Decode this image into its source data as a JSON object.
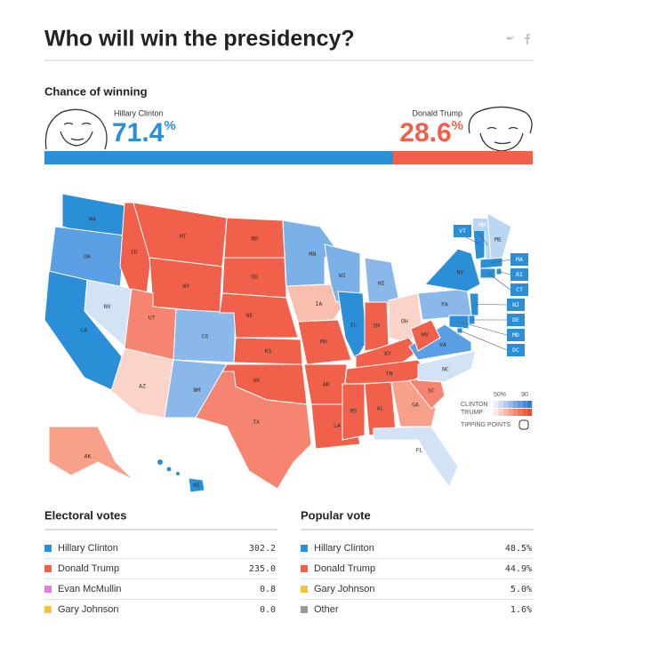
{
  "header": {
    "title": "Who will win the presidency?"
  },
  "chance": {
    "label": "Chance of winning",
    "candidates": [
      {
        "name": "Hillary Clinton",
        "value": 71.4,
        "unit": "%",
        "color": "#2b8fd8"
      },
      {
        "name": "Donald Trump",
        "value": 28.6,
        "unit": "%",
        "color": "#f0604a"
      }
    ]
  },
  "map": {
    "states": [
      {
        "abbr": "WA",
        "color": "#2b8fd8"
      },
      {
        "abbr": "OR",
        "color": "#5a9ee4"
      },
      {
        "abbr": "CA",
        "color": "#2b8fd8"
      },
      {
        "abbr": "NV",
        "color": "#d3e3f6"
      },
      {
        "abbr": "ID",
        "color": "#f0604a"
      },
      {
        "abbr": "MT",
        "color": "#f0604a"
      },
      {
        "abbr": "WY",
        "color": "#f0604a"
      },
      {
        "abbr": "UT",
        "color": "#f58570"
      },
      {
        "abbr": "CO",
        "color": "#8ab8ea"
      },
      {
        "abbr": "AZ",
        "color": "#fbd3c8"
      },
      {
        "abbr": "NM",
        "color": "#8ab8ea"
      },
      {
        "abbr": "ND",
        "color": "#f0604a"
      },
      {
        "abbr": "SD",
        "color": "#f0604a"
      },
      {
        "abbr": "NE",
        "color": "#f0604a"
      },
      {
        "abbr": "KS",
        "color": "#f0604a"
      },
      {
        "abbr": "OK",
        "color": "#f0604a"
      },
      {
        "abbr": "TX",
        "color": "#f58570"
      },
      {
        "abbr": "MN",
        "color": "#7cb1e8"
      },
      {
        "abbr": "IA",
        "color": "#f9bfae"
      },
      {
        "abbr": "MO",
        "color": "#f0604a"
      },
      {
        "abbr": "AR",
        "color": "#f0604a"
      },
      {
        "abbr": "LA",
        "color": "#f0604a"
      },
      {
        "abbr": "WI",
        "color": "#7cb1e8"
      },
      {
        "abbr": "IL",
        "color": "#2b8fd8"
      },
      {
        "abbr": "MI",
        "color": "#8ab8ea"
      },
      {
        "abbr": "IN",
        "color": "#f0604a"
      },
      {
        "abbr": "OH",
        "color": "#fbd3c8"
      },
      {
        "abbr": "KY",
        "color": "#f0604a"
      },
      {
        "abbr": "TN",
        "color": "#f0604a"
      },
      {
        "abbr": "MS",
        "color": "#f0604a"
      },
      {
        "abbr": "AL",
        "color": "#f0604a"
      },
      {
        "abbr": "GA",
        "color": "#f8a08a"
      },
      {
        "abbr": "FL",
        "color": "#d3e3f6"
      },
      {
        "abbr": "SC",
        "color": "#f58570"
      },
      {
        "abbr": "NC",
        "color": "#d3e3f6"
      },
      {
        "abbr": "VA",
        "color": "#5a9ee4"
      },
      {
        "abbr": "WV",
        "color": "#f0604a"
      },
      {
        "abbr": "PA",
        "color": "#8ab8ea"
      },
      {
        "abbr": "NY",
        "color": "#2b8fd8"
      },
      {
        "abbr": "VT",
        "color": "#2b8fd8"
      },
      {
        "abbr": "NH",
        "color": "#b9d6f3"
      },
      {
        "abbr": "ME",
        "color": "#b9d6f3"
      },
      {
        "abbr": "MA",
        "color": "#2b8fd8"
      },
      {
        "abbr": "RI",
        "color": "#2b8fd8"
      },
      {
        "abbr": "CT",
        "color": "#2b8fd8"
      },
      {
        "abbr": "NJ",
        "color": "#2b8fd8"
      },
      {
        "abbr": "DE",
        "color": "#2b8fd8"
      },
      {
        "abbr": "MD",
        "color": "#2b8fd8"
      },
      {
        "abbr": "DC",
        "color": "#2b8fd8"
      },
      {
        "abbr": "AK",
        "color": "#f8a08a"
      },
      {
        "abbr": "HI",
        "color": "#2b8fd8"
      }
    ],
    "legend": {
      "low": "50%",
      "high": "90",
      "clinton": "CLINTON",
      "trump": "TRUMP",
      "tipping": "TIPPING POINTS",
      "clinton_colors": [
        "#e3eefa",
        "#c9def5",
        "#aecdf0",
        "#93bceb",
        "#78abe6",
        "#5d9ae1",
        "#428adc",
        "#2b7bd6"
      ],
      "trump_colors": [
        "#fde6df",
        "#fbcfc3",
        "#f9b8a7",
        "#f7a18b",
        "#f58a6f",
        "#f37353",
        "#f15c3c",
        "#ee4a2a"
      ]
    }
  },
  "tables": [
    {
      "title": "Electoral votes",
      "rows": [
        {
          "name": "Hillary Clinton",
          "value": "302.2",
          "color": "#2b8fd8"
        },
        {
          "name": "Donald Trump",
          "value": "235.0",
          "color": "#f0604a"
        },
        {
          "name": "Evan McMullin",
          "value": "0.8",
          "color": "#e07be0"
        },
        {
          "name": "Gary Johnson",
          "value": "0.0",
          "color": "#f2c53d"
        }
      ]
    },
    {
      "title": "Popular vote",
      "rows": [
        {
          "name": "Hillary Clinton",
          "value": "48.5%",
          "color": "#2b8fd8"
        },
        {
          "name": "Donald Trump",
          "value": "44.9%",
          "color": "#f0604a"
        },
        {
          "name": "Gary Johnson",
          "value": "5.0%",
          "color": "#f2c53d"
        },
        {
          "name": "Other",
          "value": "1.6%",
          "color": "#999999"
        }
      ]
    }
  ]
}
